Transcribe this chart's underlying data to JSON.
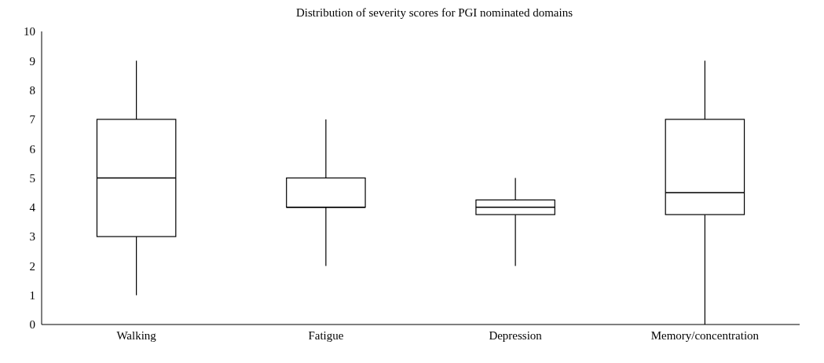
{
  "chart_data": {
    "type": "box",
    "title": "Distribution of severity scores for PGI nominated domains",
    "categories": [
      "Walking",
      "Fatigue",
      "Depression",
      "Memory/concentration"
    ],
    "boxes": [
      {
        "low": 1,
        "q1": 3,
        "median": 5,
        "q3": 7,
        "high": 9
      },
      {
        "low": 2,
        "q1": 4,
        "median": 4,
        "q3": 5,
        "high": 7
      },
      {
        "low": 2,
        "q1": 3.75,
        "median": 4,
        "q3": 4.25,
        "high": 5
      },
      {
        "low": 0,
        "q1": 3.75,
        "median": 4.5,
        "q3": 7,
        "high": 9
      }
    ],
    "color": "#000000",
    "ylim": [
      0,
      10
    ],
    "yticks": [
      0,
      1,
      2,
      3,
      4,
      5,
      6,
      7,
      8,
      9,
      10
    ],
    "grid": false
  }
}
